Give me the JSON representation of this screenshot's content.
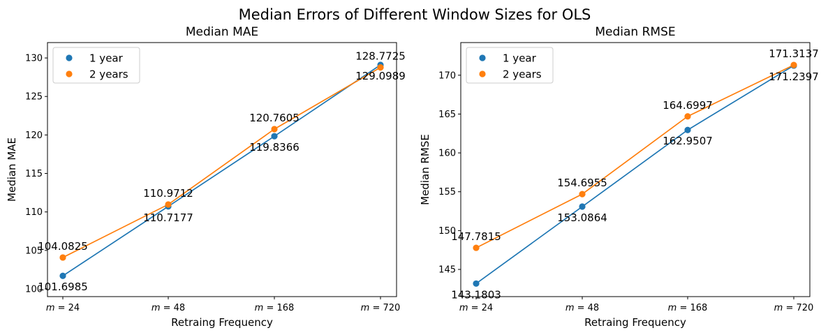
{
  "suptitle": "Median Errors of Different Window Sizes for OLS",
  "colors": {
    "one_year": "#1f77b4",
    "two_years": "#ff7f0e"
  },
  "chart_data": [
    {
      "type": "line",
      "title": "Median MAE",
      "xlabel": "Retraing Frequency",
      "ylabel": "Median MAE",
      "categories": [
        "m = 24",
        "m = 48",
        "m = 168",
        "m = 720"
      ],
      "ylim": [
        99,
        132
      ],
      "yticks": [
        100,
        105,
        110,
        115,
        120,
        125,
        130
      ],
      "legend": "top-left",
      "grid": false,
      "series": [
        {
          "name": "1 year",
          "color": "#1f77b4",
          "values": [
            101.6985,
            110.7177,
            119.8366,
            129.0989
          ],
          "labels": [
            "101.6985",
            "110.7177",
            "119.8366",
            "129.0989"
          ]
        },
        {
          "name": "2 years",
          "color": "#ff7f0e",
          "values": [
            104.0825,
            110.9712,
            120.7605,
            128.7725
          ],
          "labels": [
            "104.0825",
            "110.9712",
            "120.7605",
            "128.7725"
          ]
        }
      ]
    },
    {
      "type": "line",
      "title": "Median RMSE",
      "xlabel": "Retraing Frequency",
      "ylabel": "Median RMSE",
      "categories": [
        "m = 24",
        "m = 48",
        "m = 168",
        "m = 720"
      ],
      "ylim": [
        141.5,
        174.2
      ],
      "yticks": [
        145,
        150,
        155,
        160,
        165,
        170
      ],
      "legend": "top-left",
      "grid": false,
      "series": [
        {
          "name": "1 year",
          "color": "#1f77b4",
          "values": [
            143.1803,
            153.0864,
            162.9507,
            171.2397
          ],
          "labels": [
            "143.1803",
            "153.0864",
            "162.9507",
            "171.2397"
          ]
        },
        {
          "name": "2 years",
          "color": "#ff7f0e",
          "values": [
            147.7815,
            154.6955,
            164.6997,
            171.3137
          ],
          "labels": [
            "147.7815",
            "154.6955",
            "164.6997",
            "171.3137"
          ]
        }
      ]
    }
  ]
}
